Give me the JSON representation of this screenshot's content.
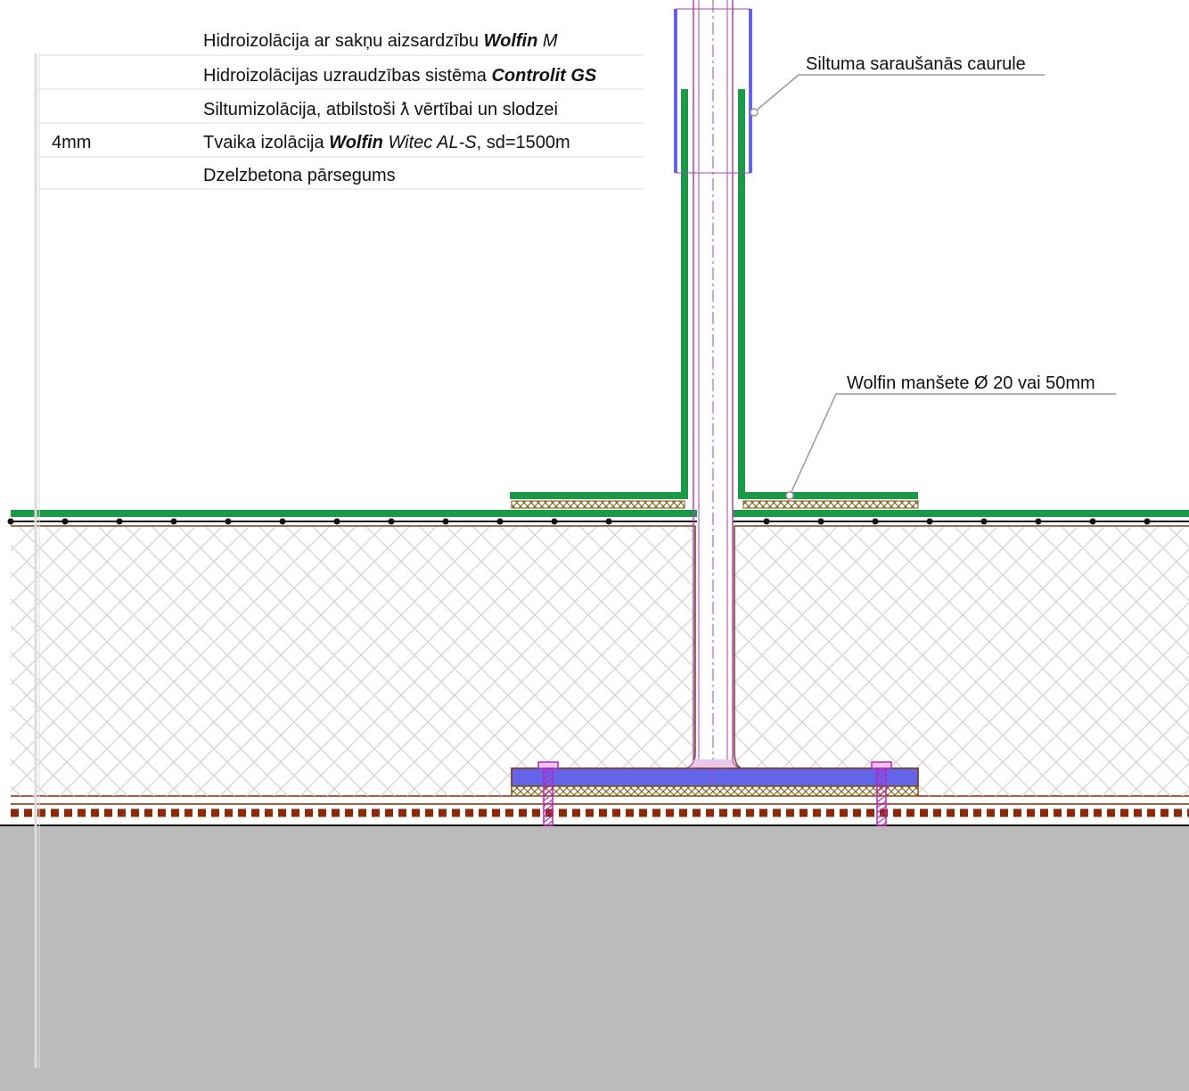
{
  "legend": {
    "rows": [
      {
        "thickness": "",
        "parts": [
          {
            "text": "Hidroizolācija ar sakņu aizsardzību ",
            "style": "normal"
          },
          {
            "text": "Wolfin",
            "style": "bold-italic"
          },
          {
            "text": " M",
            "style": "italic"
          }
        ]
      },
      {
        "thickness": "",
        "parts": [
          {
            "text": "Hidroizolācijas uzraudzības sistēma ",
            "style": "normal"
          },
          {
            "text": "Controlit GS",
            "style": "bold-italic"
          }
        ]
      },
      {
        "thickness": "",
        "parts": [
          {
            "text": "Siltumizolācija, atbilstoši ƛ vērtībai un slodzei",
            "style": "normal"
          }
        ]
      },
      {
        "thickness": "4mm",
        "parts": [
          {
            "text": "Tvaika izolācija ",
            "style": "normal"
          },
          {
            "text": "Wolfin",
            "style": "bold-italic"
          },
          {
            "text": " Witec AL-S",
            "style": "italic"
          },
          {
            "text": ", sd=1500m",
            "style": "normal"
          }
        ]
      },
      {
        "thickness": "",
        "parts": [
          {
            "text": "Dzelzbetona pārsegums",
            "style": "normal"
          }
        ]
      }
    ]
  },
  "callouts": {
    "shrink_tube": "Siltuma saraušanās caurule",
    "cuff": "Wolfin manšete Ø 20 vai 50mm"
  },
  "colors": {
    "membrane": "#1a9a48",
    "shrink_tube": "#6464e8",
    "pipe": "#b040b0",
    "bolt": "#c020c0",
    "concrete": "#bbbbbb",
    "vapour_barrier": "#8b2a0a",
    "insulation_hatch": "#d4d4d4",
    "fleece": "#7a5a10",
    "leader": "#999999"
  }
}
